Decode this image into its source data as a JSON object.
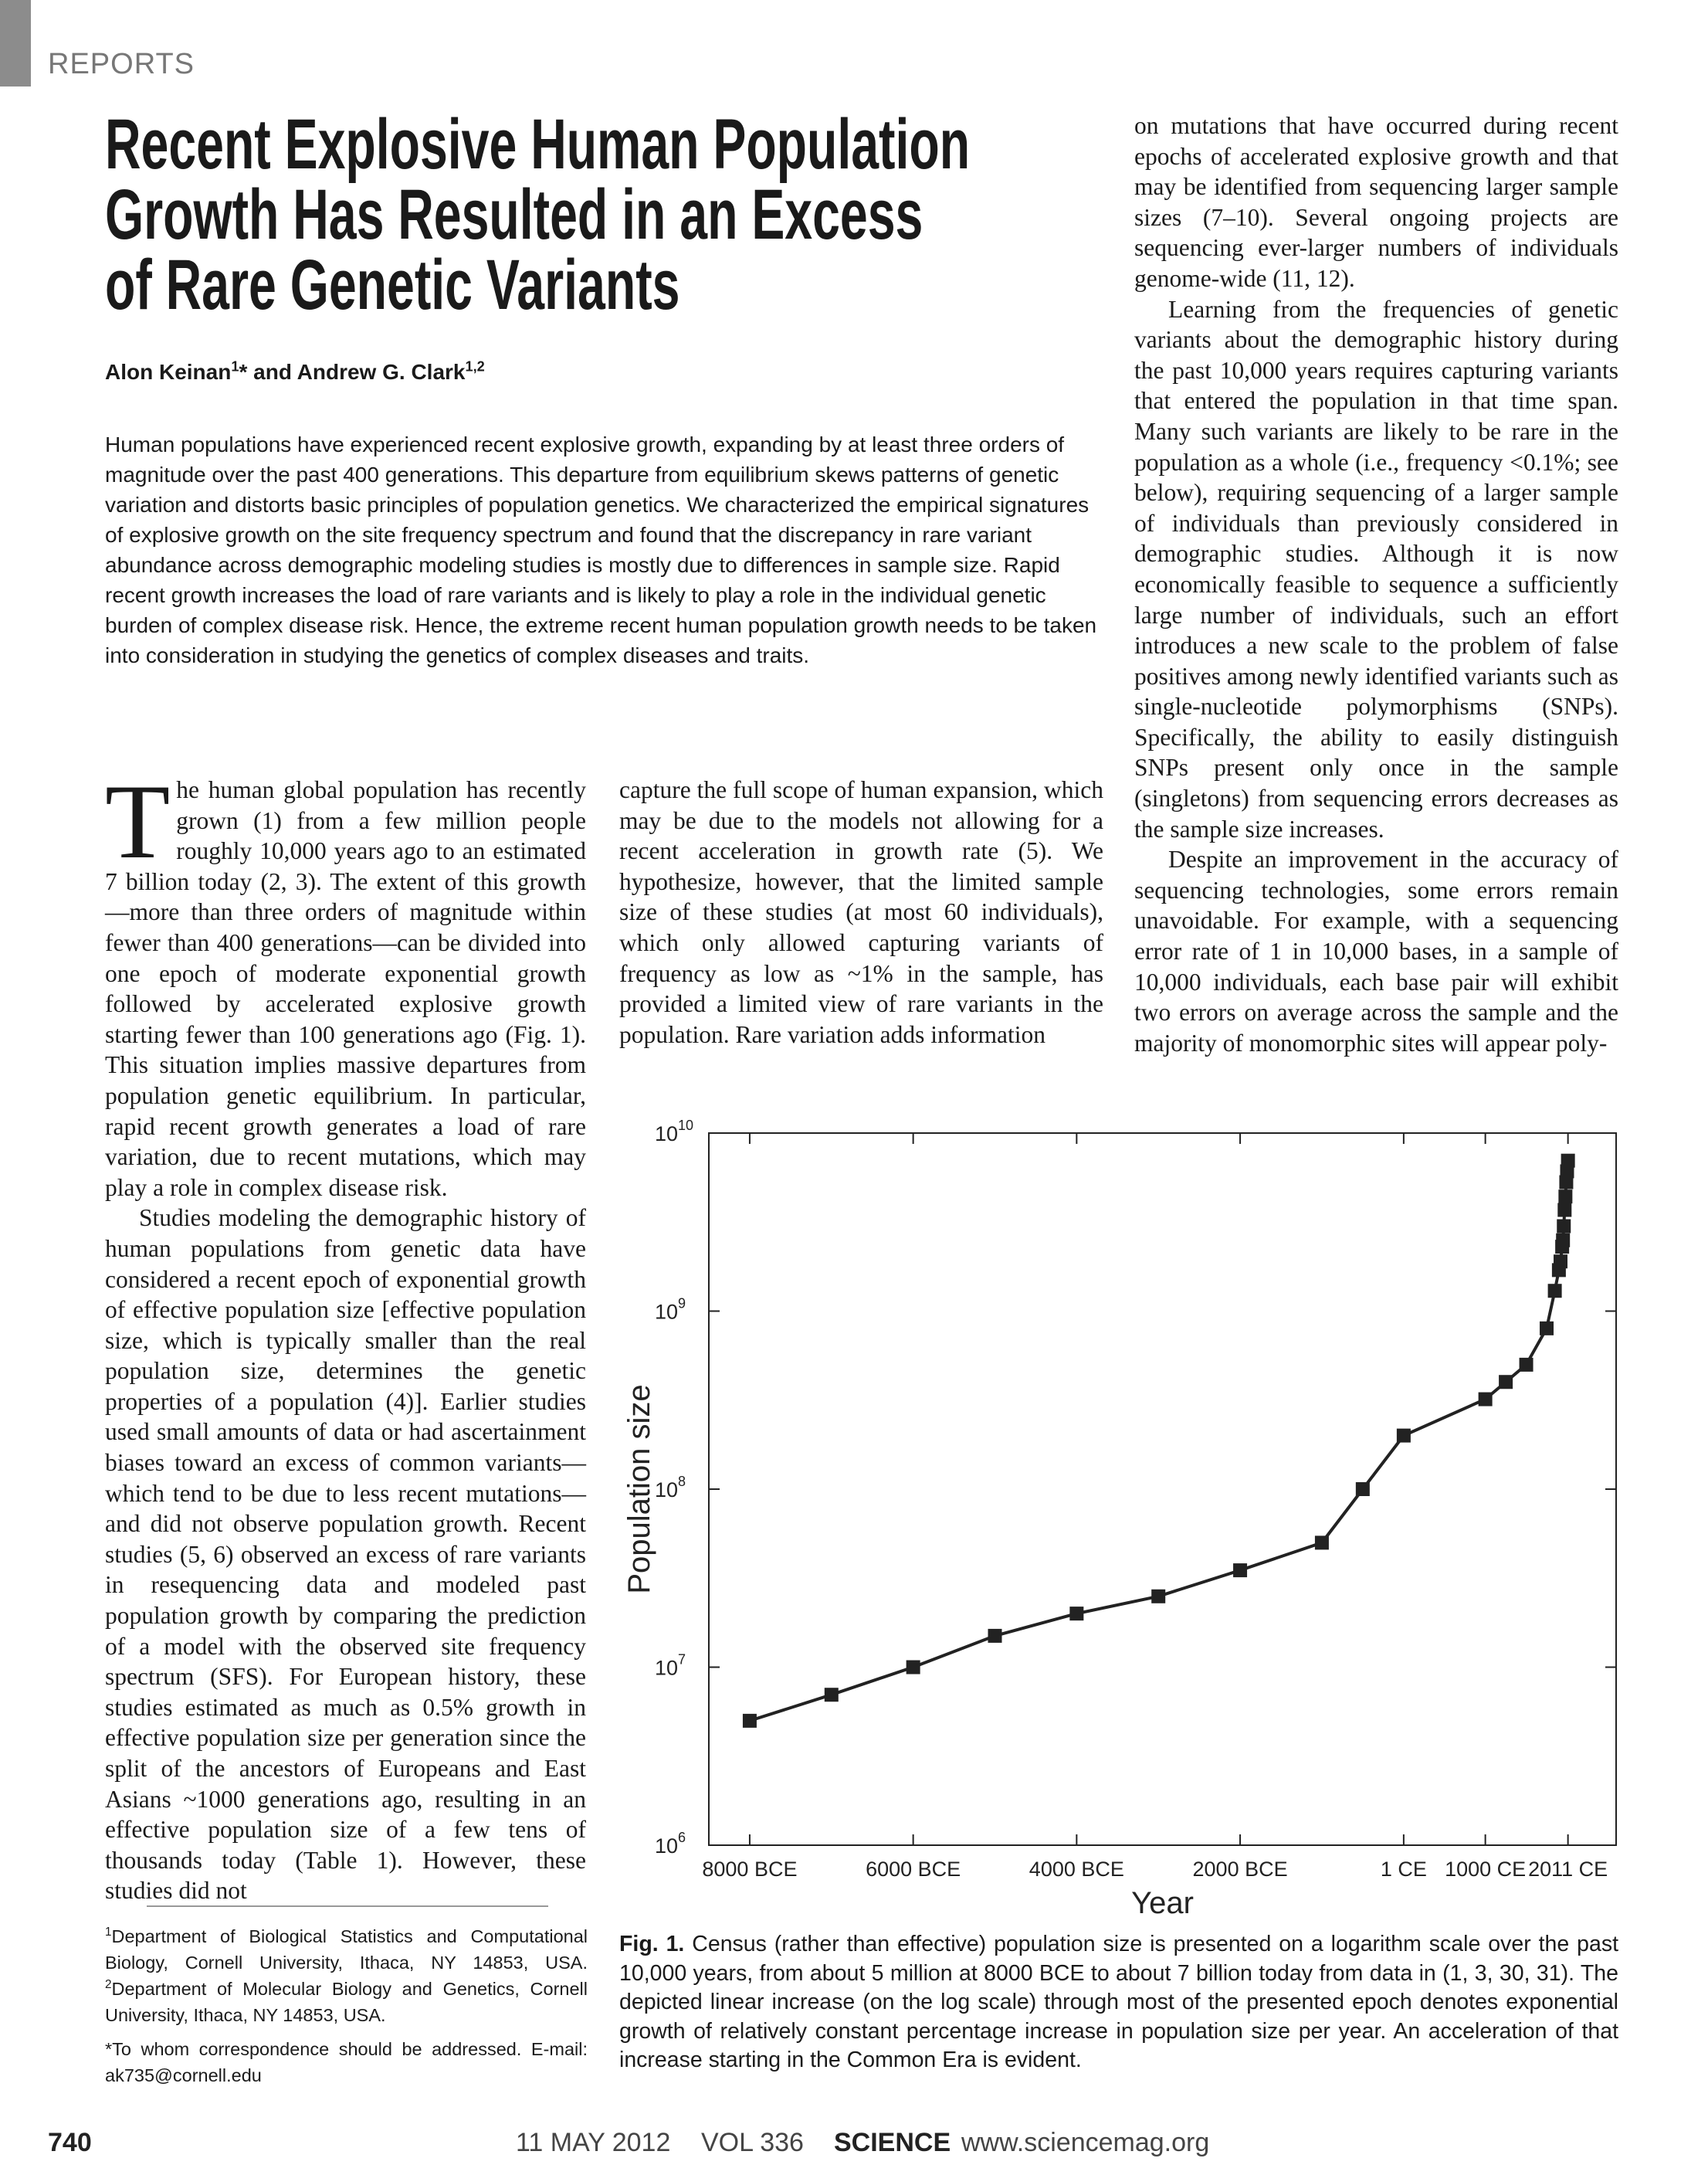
{
  "header": {
    "section": "REPORTS"
  },
  "title": [
    "Recent Explosive Human Population",
    "Growth Has Resulted in an Excess",
    "of Rare Genetic Variants"
  ],
  "authors": [
    "Alon Keinan",
    "1",
    "* and Andrew G. Clark",
    "1,2"
  ],
  "abstract": "Human populations have experienced recent explosive growth, expanding by at least three orders of magnitude over the past 400 generations. This departure from equilibrium skews patterns of genetic variation and distorts basic principles of population genetics. We characterized the empirical signatures of explosive growth on the site frequency spectrum and found that the discrepancy in rare variant abundance across demographic modeling studies is mostly due to differences in sample size. Rapid recent growth increases the load of rare variants and is likely to play a role in the individual genetic burden of complex disease risk. Hence, the extreme recent human population growth needs to be taken into consideration in studying the genetics of complex diseases and traits.",
  "body": {
    "drop_cap": "T",
    "left": [
      "he human global population has recently grown (1) from a few million people roughly 10,000 years ago to an estimated 7 billion today (2, 3). The extent of this growth—more than three orders of magnitude within fewer than 400 generations—can be divided into one epoch of moderate exponential growth followed by accelerated explosive growth starting fewer than 100 generations ago (Fig. 1). This situation implies massive departures from population genetic equilibrium. In particular, rapid recent growth generates a load of rare variation, due to recent mutations, which may play a role in complex disease risk.",
      "Studies modeling the demographic history of human populations from genetic data have considered a recent epoch of exponential growth of effective population size [effective population size, which is typically smaller than the real population size, determines the genetic properties of a population (4)]. Earlier studies used small amounts of data or had ascertainment biases toward an excess of common variants—which tend to be due to less recent mutations—and did not observe population growth. Recent studies (5, 6) observed an excess of rare variants in resequencing data and modeled past population growth by comparing the prediction of a model with the observed site frequency spectrum (SFS). For European history, these studies estimated as much as 0.5% growth in effective population size per generation since the split of the ancestors of Europeans and East Asians ~1000 generations ago, resulting in an effective population size of a few tens of thousands today (Table 1). However, these studies did not"
    ],
    "middle": [
      "capture the full scope of human expansion, which may be due to the models not allowing for a recent acceleration in growth rate (5). We hypothesize, however, that the limited sample size of these studies (at most 60 individuals), which only allowed capturing variants of frequency as low as ~1% in the sample, has provided a limited view of rare variants in the population. Rare variation adds information"
    ],
    "right": [
      "on mutations that have occurred during recent epochs of accelerated explosive growth and that may be identified from sequencing larger sample sizes (7–10). Several ongoing projects are sequencing ever-larger numbers of individuals genome-wide (11, 12).",
      "Learning from the frequencies of genetic variants about the demographic history during the past 10,000 years requires capturing variants that entered the population in that time span. Many such variants are likely to be rare in the population as a whole (i.e., frequency <0.1%; see below), requiring sequencing of a larger sample of individuals than previously considered in demographic studies. Although it is now economically feasible to sequence a sufficiently large number of individuals, such an effort introduces a new scale to the problem of false positives among newly identified variants such as single-nucleotide polymorphisms (SNPs). Specifically, the ability to easily distinguish SNPs present only once in the sample (singletons) from sequencing errors decreases as the sample size increases.",
      "Despite an improvement in the accuracy of sequencing technologies, some errors remain unavoidable. For example, with a sequencing error rate of 1 in 10,000 bases, in a sample of 10,000 individuals, each base pair will exhibit two errors on average across the sample and the majority of monomorphic sites will appear poly-"
    ]
  },
  "chart_data": {
    "type": "line",
    "x_label": "Year",
    "y_label": "Population size",
    "log_scale": true,
    "color": "#222222",
    "x": [
      -8000,
      -7000,
      -6000,
      -5000,
      -4000,
      -3000,
      -2000,
      -1000,
      -500,
      1,
      1000,
      1250,
      1500,
      1750,
      1850,
      1900,
      1920,
      1940,
      1950,
      1960,
      1970,
      1980,
      1990,
      2000,
      2011
    ],
    "values": [
      5000000,
      7000000,
      10000000,
      15000000,
      20000000,
      25000000,
      35000000,
      50000000,
      100000000,
      200000000,
      320000000,
      400000000,
      500000000,
      800000000,
      1300000000,
      1700000000,
      1900000000,
      2300000000,
      2500000000,
      3000000000,
      3700000000,
      4400000000,
      5300000000,
      6100000000,
      7000000000
    ],
    "xlim": [
      -8500,
      2600
    ],
    "xticks": [
      {
        "value": -8000,
        "label": "8000 BCE"
      },
      {
        "value": -6000,
        "label": "6000 BCE"
      },
      {
        "value": -4000,
        "label": "4000 BCE"
      },
      {
        "value": -2000,
        "label": "2000 BCE"
      },
      {
        "value": 1,
        "label": "1 CE"
      },
      {
        "value": 1000,
        "label": "1000 CE"
      },
      {
        "value": 2011,
        "label": "2011 CE"
      }
    ],
    "ylim": [
      1000000,
      10000000000
    ],
    "yticks": [
      {
        "value": 1000000,
        "label": "10",
        "exponent": "6"
      },
      {
        "value": 10000000,
        "label": "10",
        "exponent": "7"
      },
      {
        "value": 100000000,
        "label": "10",
        "exponent": "8"
      },
      {
        "value": 1000000000,
        "label": "10",
        "exponent": "9"
      },
      {
        "value": 10000000000,
        "label": "10",
        "exponent": "10"
      }
    ]
  },
  "caption": {
    "label": "Fig. 1.",
    "text": "Census (rather than effective) population size is presented on a logarithm scale over the past 10,000 years, from about 5 million at 8000 BCE to about 7 billion today from data in (1, 3, 30, 31). The depicted linear increase (on the log scale) through most of the presented epoch denotes exponential growth of relatively constant percentage increase in population size per year. An acceleration of that increase starting in the Common Era is evident."
  },
  "footnotes": {
    "affiliations": [
      "1",
      "Department of Biological Statistics and Computational Biology, Cornell University, Ithaca, NY 14853, USA. ",
      "2",
      "Department of Molecular Biology and Genetics, Cornell University, Ithaca, NY 14853, USA."
    ],
    "correspondence": "*To whom correspondence should be addressed. E-mail: ak735@cornell.edu"
  },
  "footer": {
    "page": "740",
    "date": "11 MAY 2012",
    "volume": "VOL 336",
    "journal": "SCIENCE",
    "url": "www.sciencemag.org"
  }
}
